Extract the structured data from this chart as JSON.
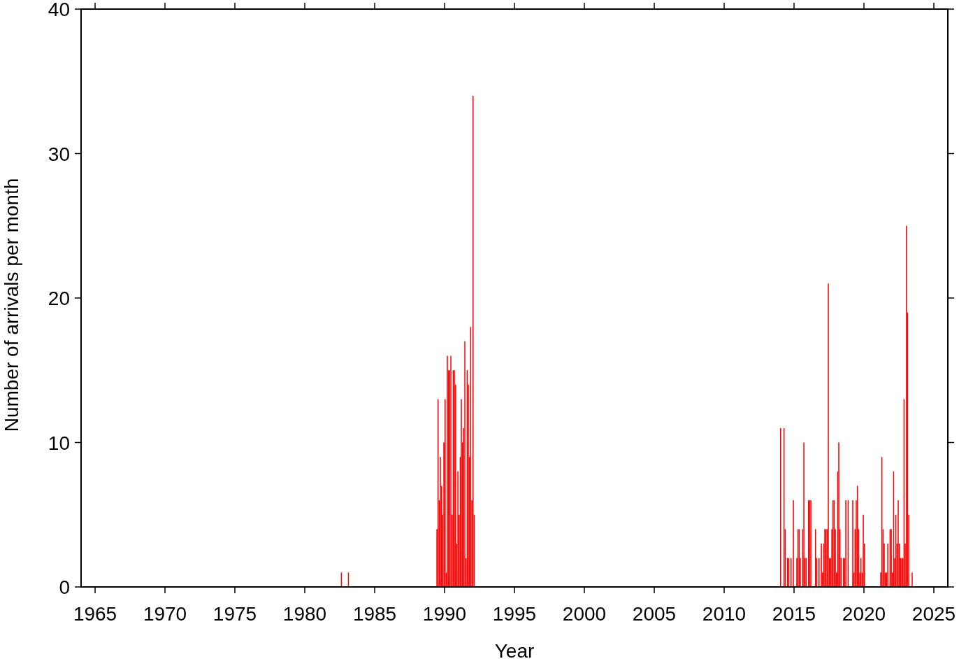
{
  "chart_data": {
    "type": "bar",
    "xlabel": "Year",
    "ylabel": "Number of arrivals per month",
    "x": [
      "1982-08",
      "1983-02",
      "1989-06",
      "1989-07",
      "1989-08",
      "1989-09",
      "1989-10",
      "1989-11",
      "1989-12",
      "1990-01",
      "1990-02",
      "1990-03",
      "1990-04",
      "1990-05",
      "1990-06",
      "1990-07",
      "1990-08",
      "1990-09",
      "1990-10",
      "1990-11",
      "1990-12",
      "1991-01",
      "1991-02",
      "1991-03",
      "1991-04",
      "1991-05",
      "1991-06",
      "1991-07",
      "1991-08",
      "1991-09",
      "1991-10",
      "1991-11",
      "1991-12",
      "1992-01",
      "1992-02",
      "2014-01",
      "2014-04",
      "2014-05",
      "2014-07",
      "2014-08",
      "2014-10",
      "2014-12",
      "2015-03",
      "2015-04",
      "2015-05",
      "2015-06",
      "2015-08",
      "2015-09",
      "2015-10",
      "2015-11",
      "2016-01",
      "2016-02",
      "2016-03",
      "2016-07",
      "2016-08",
      "2016-10",
      "2016-12",
      "2017-01",
      "2017-02",
      "2017-03",
      "2017-04",
      "2017-05",
      "2017-06",
      "2017-07",
      "2017-08",
      "2017-09",
      "2017-10",
      "2017-11",
      "2017-12",
      "2018-01",
      "2018-02",
      "2018-03",
      "2018-04",
      "2018-05",
      "2018-07",
      "2018-08",
      "2018-09",
      "2018-11",
      "2019-03",
      "2019-04",
      "2019-05",
      "2019-06",
      "2019-07",
      "2019-08",
      "2019-09",
      "2019-10",
      "2019-11",
      "2019-12",
      "2020-01",
      "2021-03",
      "2021-04",
      "2021-05",
      "2021-06",
      "2021-07",
      "2021-08",
      "2021-09",
      "2021-11",
      "2021-12",
      "2022-01",
      "2022-02",
      "2022-03",
      "2022-04",
      "2022-05",
      "2022-06",
      "2022-07",
      "2022-08",
      "2022-09",
      "2022-10",
      "2022-11",
      "2022-12",
      "2023-01",
      "2023-02",
      "2023-03",
      "2023-06"
    ],
    "values": [
      1,
      1,
      4,
      13,
      6,
      9,
      7,
      5,
      10,
      13,
      1,
      16,
      15,
      15,
      16,
      5,
      15,
      15,
      14,
      3,
      8,
      5,
      9,
      13,
      10,
      11,
      17,
      2,
      15,
      14,
      9,
      18,
      6,
      34,
      5,
      11,
      11,
      4,
      2,
      2,
      2,
      6,
      2,
      4,
      4,
      2,
      4,
      10,
      2,
      2,
      6,
      6,
      6,
      4,
      2,
      2,
      3,
      1,
      3,
      4,
      4,
      4,
      21,
      2,
      2,
      4,
      6,
      6,
      4,
      1,
      8,
      10,
      4,
      2,
      2,
      2,
      6,
      6,
      6,
      1,
      4,
      6,
      7,
      4,
      1,
      2,
      1,
      5,
      3,
      1,
      9,
      4,
      3,
      1,
      1,
      3,
      4,
      4,
      1,
      8,
      2,
      5,
      3,
      6,
      3,
      2,
      2,
      2,
      13,
      3,
      25,
      19,
      5,
      1
    ],
    "color": "#ff0000",
    "xlim": [
      "1964",
      "2026"
    ],
    "xticks": [
      "1965",
      "1970",
      "1975",
      "1980",
      "1985",
      "1990",
      "1995",
      "2000",
      "2005",
      "2010",
      "2015",
      "2020",
      "2025"
    ],
    "ylim": [
      0,
      40
    ],
    "yticks": [
      0,
      10,
      20,
      30,
      40
    ],
    "grid": false
  }
}
